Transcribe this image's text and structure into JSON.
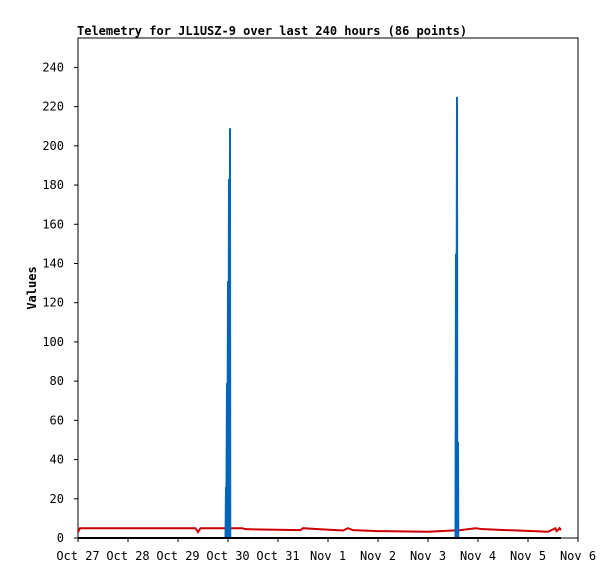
{
  "chart_data": {
    "type": "line",
    "title": "Telemetry for JL1USZ-9 over last 240 hours (86 points)",
    "xlabel": "",
    "ylabel": "Values",
    "x_tick_labels": [
      "Oct 27",
      "Oct 28",
      "Oct 29",
      "Oct 30",
      "Oct 31",
      "Nov 1",
      "Nov 2",
      "Nov 3",
      "Nov 4",
      "Nov 5",
      "Nov 6"
    ],
    "y_ticks": [
      0,
      20,
      40,
      60,
      80,
      100,
      120,
      140,
      160,
      180,
      200,
      220,
      240
    ],
    "xlim": [
      0,
      10
    ],
    "ylim": [
      0,
      255
    ],
    "grid": false,
    "legend": "none",
    "series": [
      {
        "color": "#cc0000",
        "points": [
          [
            0.0,
            3
          ],
          [
            0.04,
            5
          ],
          [
            2.35,
            5
          ],
          [
            2.4,
            3
          ],
          [
            2.45,
            5
          ],
          [
            3.28,
            5
          ],
          [
            3.35,
            4.5
          ],
          [
            4.45,
            4
          ],
          [
            4.5,
            5
          ],
          [
            4.8,
            4.5
          ],
          [
            5.3,
            3.8
          ],
          [
            5.4,
            5
          ],
          [
            5.5,
            4
          ],
          [
            6.0,
            3.5
          ],
          [
            7.0,
            3.2
          ],
          [
            7.65,
            4
          ],
          [
            7.95,
            5
          ],
          [
            8.1,
            4.5
          ],
          [
            8.8,
            3.8
          ],
          [
            9.4,
            3.2
          ],
          [
            9.55,
            5
          ],
          [
            9.57,
            3.5
          ],
          [
            9.6,
            4
          ],
          [
            9.63,
            5
          ],
          [
            9.66,
            4
          ]
        ]
      },
      {
        "color": "#0066bb",
        "points": [
          [
            0.0,
            0
          ],
          [
            2.95,
            0
          ],
          [
            2.96,
            26
          ],
          [
            2.965,
            0
          ],
          [
            2.98,
            79
          ],
          [
            2.985,
            0
          ],
          [
            3.0,
            131
          ],
          [
            3.005,
            0
          ],
          [
            3.02,
            183
          ],
          [
            3.025,
            0
          ],
          [
            3.04,
            209
          ],
          [
            3.045,
            0
          ],
          [
            3.06,
            0
          ],
          [
            7.55,
            0
          ],
          [
            7.56,
            145
          ],
          [
            7.565,
            0
          ],
          [
            7.58,
            225
          ],
          [
            7.585,
            0
          ],
          [
            7.6,
            49
          ],
          [
            7.605,
            0
          ],
          [
            7.62,
            0
          ]
        ]
      },
      {
        "color": "#000000",
        "points": [
          [
            0.0,
            0
          ],
          [
            9.66,
            0
          ]
        ]
      }
    ]
  }
}
